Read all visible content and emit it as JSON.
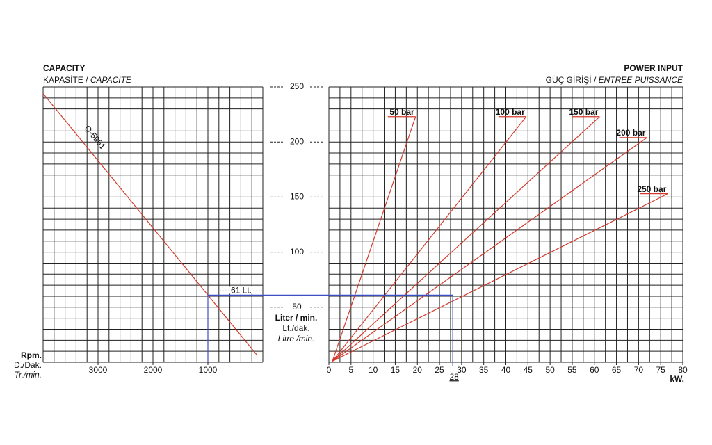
{
  "chart_data": [
    {
      "type": "line",
      "title": "CAPACITY",
      "subtitle": [
        "KAPASİTE / ",
        "CAPACITE"
      ],
      "x_label": [
        "Rpm.",
        "D./Dak.",
        "Tr./min."
      ],
      "y_label": [
        "Liter / min.",
        "Lt./dak.",
        "Litre /min."
      ],
      "xlim": [
        4000,
        0
      ],
      "xticks": [
        3000,
        2000,
        1000
      ],
      "ylim": [
        0,
        250
      ],
      "yticks": [
        50,
        100,
        150,
        200,
        250
      ],
      "grid": true,
      "grid_x_step": 200,
      "grid_y_step": 10,
      "series": [
        {
          "name": "Q-5961",
          "color": "#d33a2c",
          "x": [
            4000,
            100
          ],
          "values": [
            244,
            6.1
          ]
        }
      ],
      "guide": {
        "x": 1000,
        "value": 61,
        "label": "61 Lt.",
        "color": "#3b4fc4"
      }
    },
    {
      "type": "line",
      "title": "POWER INPUT",
      "subtitle": [
        "GÜÇ GİRİŞİ / ",
        "ENTREE PUISSANCE"
      ],
      "x_label": "kW.",
      "xlim": [
        0,
        80
      ],
      "xticks": [
        0,
        5,
        10,
        15,
        20,
        25,
        30,
        35,
        40,
        45,
        50,
        55,
        60,
        65,
        70,
        75,
        80
      ],
      "ylim": [
        0,
        250
      ],
      "grid": true,
      "grid_x_step": 2.5,
      "grid_y_step": 10,
      "series": [
        {
          "name": "50 bar",
          "color": "#d33a2c",
          "x": [
            0.8,
            19.6
          ],
          "values": [
            1,
            223
          ]
        },
        {
          "name": "100 bar",
          "color": "#d33a2c",
          "x": [
            0.8,
            44.6
          ],
          "values": [
            1,
            223
          ]
        },
        {
          "name": "150 bar",
          "color": "#d33a2c",
          "x": [
            0.8,
            61.2
          ],
          "values": [
            1,
            223
          ]
        },
        {
          "name": "200 bar",
          "color": "#d33a2c",
          "x": [
            0.8,
            71.9
          ],
          "values": [
            1,
            204
          ]
        },
        {
          "name": "250 bar",
          "color": "#d33a2c",
          "x": [
            0.8,
            76.6
          ],
          "values": [
            1,
            153
          ]
        }
      ],
      "guide": {
        "x": 28,
        "label": "28",
        "color": "#3b4fc4"
      }
    }
  ]
}
